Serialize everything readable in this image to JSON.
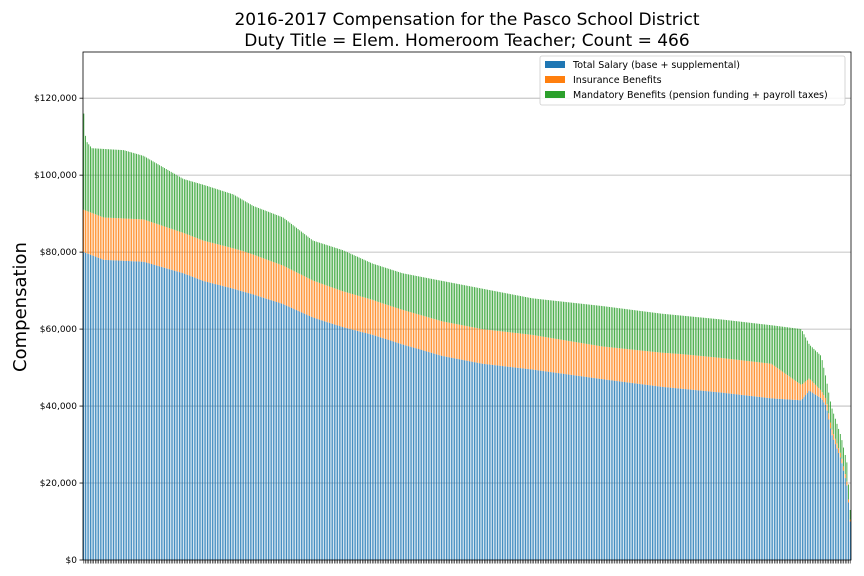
{
  "chart_data": {
    "type": "bar",
    "stacked": true,
    "title": "2016-2017 Compensation for the Pasco School District",
    "subtitle": "Duty Title = Elem. Homeroom Teacher; Count = 466",
    "ylabel": "Compensation",
    "xlabel": "",
    "ylim": [
      0,
      132000
    ],
    "yticks": [
      0,
      20000,
      40000,
      60000,
      80000,
      100000,
      120000
    ],
    "ytick_labels": [
      "$0",
      "$20,000",
      "$40,000",
      "$60,000",
      "$80,000",
      "$100,000",
      "$120,000"
    ],
    "grid": true,
    "legend_position": "top-right",
    "count": 466,
    "series": [
      {
        "name": "Total Salary (base + supplemental)",
        "color": "#1f77b4"
      },
      {
        "name": "Insurance Benefits",
        "color": "#ff7f0e"
      },
      {
        "name": "Mandatory Benefits (pension funding + payroll taxes)",
        "color": "#2ca02c"
      }
    ],
    "anchors_total": [
      [
        0,
        116000
      ],
      [
        2,
        109000
      ],
      [
        8,
        107000
      ],
      [
        40,
        106500
      ],
      [
        60,
        105000
      ],
      [
        80,
        102000
      ],
      [
        100,
        99000
      ],
      [
        120,
        97500
      ],
      [
        150,
        95000
      ],
      [
        170,
        92000
      ],
      [
        200,
        89000
      ],
      [
        230,
        83000
      ],
      [
        260,
        80500
      ],
      [
        290,
        77000
      ],
      [
        320,
        74500
      ],
      [
        360,
        72500
      ],
      [
        400,
        70500
      ],
      [
        450,
        68000
      ],
      [
        520,
        66000
      ],
      [
        580,
        64000
      ],
      [
        640,
        62500
      ],
      [
        690,
        61000
      ],
      [
        720,
        60000
      ],
      [
        728,
        56000
      ],
      [
        740,
        53000
      ],
      [
        745,
        47000
      ],
      [
        750,
        40000
      ],
      [
        760,
        32000
      ],
      [
        766,
        25000
      ],
      [
        769,
        13000
      ]
    ],
    "anchors_salary": [
      [
        0,
        80000
      ],
      [
        10,
        79000
      ],
      [
        20,
        78000
      ],
      [
        60,
        77500
      ],
      [
        80,
        76000
      ],
      [
        100,
        74500
      ],
      [
        120,
        72500
      ],
      [
        150,
        70500
      ],
      [
        170,
        69000
      ],
      [
        200,
        66500
      ],
      [
        230,
        63000
      ],
      [
        260,
        60500
      ],
      [
        290,
        58500
      ],
      [
        320,
        56000
      ],
      [
        360,
        53000
      ],
      [
        400,
        51000
      ],
      [
        450,
        49500
      ],
      [
        520,
        47000
      ],
      [
        580,
        45000
      ],
      [
        640,
        43500
      ],
      [
        690,
        42000
      ],
      [
        720,
        41500
      ],
      [
        728,
        44000
      ],
      [
        740,
        42000
      ],
      [
        745,
        40000
      ],
      [
        750,
        33000
      ],
      [
        760,
        26000
      ],
      [
        766,
        19000
      ],
      [
        769,
        10000
      ]
    ],
    "anchors_insurance": [
      [
        0,
        11000
      ],
      [
        60,
        11000
      ],
      [
        100,
        10500
      ],
      [
        160,
        10500
      ],
      [
        200,
        10000
      ],
      [
        240,
        9500
      ],
      [
        300,
        9000
      ],
      [
        360,
        9000
      ],
      [
        450,
        9000
      ],
      [
        520,
        8500
      ],
      [
        600,
        9000
      ],
      [
        690,
        9000
      ],
      [
        720,
        4000
      ],
      [
        740,
        2000
      ],
      [
        750,
        1500
      ],
      [
        766,
        1000
      ],
      [
        769,
        500
      ]
    ]
  }
}
